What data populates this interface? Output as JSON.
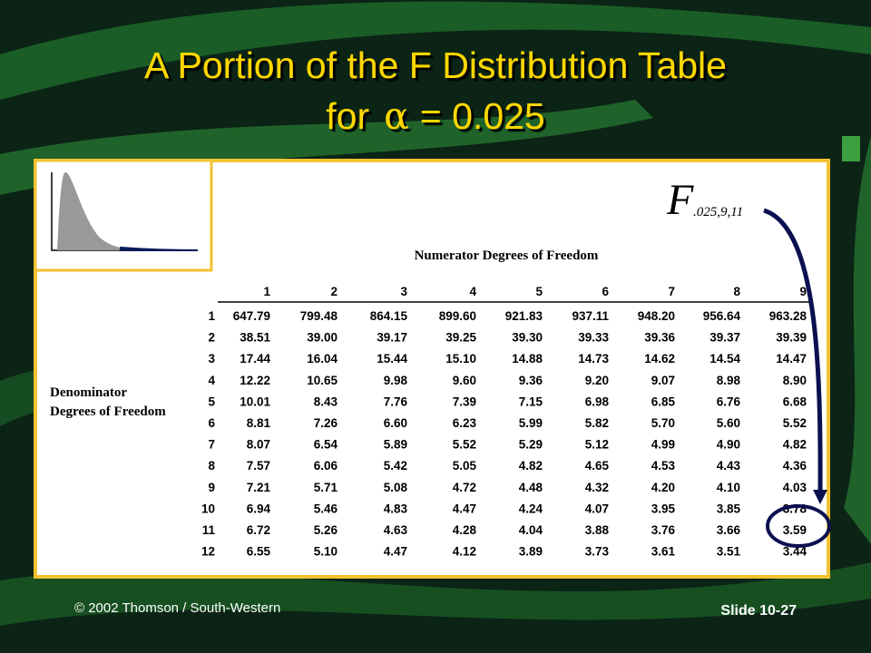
{
  "header": {
    "title_line1": "A Portion of the F Distribution Table",
    "title_line2_prefix": "for",
    "title_symbol": "α",
    "title_line2_suffix": "= 0.025"
  },
  "notation": {
    "symbol": "F",
    "subscript": ".025,9,11"
  },
  "table": {
    "numerator_label": "Numerator Degrees of Freedom",
    "denominator_label_line1": "Denominator",
    "denominator_label_line2": "Degrees of Freedom",
    "columns": [
      "1",
      "2",
      "3",
      "4",
      "5",
      "6",
      "7",
      "8",
      "9"
    ],
    "rows": [
      [
        "1",
        "647.79",
        "799.48",
        "864.15",
        "899.60",
        "921.83",
        "937.11",
        "948.20",
        "956.64",
        "963.28"
      ],
      [
        "2",
        "38.51",
        "39.00",
        "39.17",
        "39.25",
        "39.30",
        "39.33",
        "39.36",
        "39.37",
        "39.39"
      ],
      [
        "3",
        "17.44",
        "16.04",
        "15.44",
        "15.10",
        "14.88",
        "14.73",
        "14.62",
        "14.54",
        "14.47"
      ],
      [
        "4",
        "12.22",
        "10.65",
        "9.98",
        "9.60",
        "9.36",
        "9.20",
        "9.07",
        "8.98",
        "8.90"
      ],
      [
        "5",
        "10.01",
        "8.43",
        "7.76",
        "7.39",
        "7.15",
        "6.98",
        "6.85",
        "6.76",
        "6.68"
      ],
      [
        "6",
        "8.81",
        "7.26",
        "6.60",
        "6.23",
        "5.99",
        "5.82",
        "5.70",
        "5.60",
        "5.52"
      ],
      [
        "7",
        "8.07",
        "6.54",
        "5.89",
        "5.52",
        "5.29",
        "5.12",
        "4.99",
        "4.90",
        "4.82"
      ],
      [
        "8",
        "7.57",
        "6.06",
        "5.42",
        "5.05",
        "4.82",
        "4.65",
        "4.53",
        "4.43",
        "4.36"
      ],
      [
        "9",
        "7.21",
        "5.71",
        "5.08",
        "4.72",
        "4.48",
        "4.32",
        "4.20",
        "4.10",
        "4.03"
      ],
      [
        "10",
        "6.94",
        "5.46",
        "4.83",
        "4.47",
        "4.24",
        "4.07",
        "3.95",
        "3.85",
        "3.78"
      ],
      [
        "11",
        "6.72",
        "5.26",
        "4.63",
        "4.28",
        "4.04",
        "3.88",
        "3.76",
        "3.66",
        "3.59"
      ],
      [
        "12",
        "6.55",
        "5.10",
        "4.47",
        "4.12",
        "3.89",
        "3.73",
        "3.61",
        "3.51",
        "3.44"
      ]
    ]
  },
  "footer": {
    "copyright": "© 2002 Thomson / South-Western",
    "slide": "Slide 10-27"
  }
}
